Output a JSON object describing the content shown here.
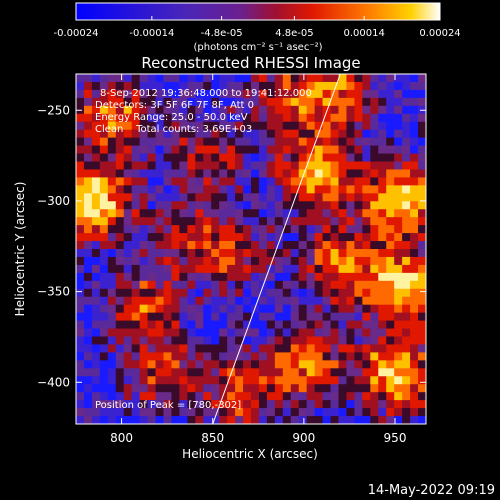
{
  "chart_data": {
    "type": "heatmap",
    "title": "Reconstructed RHESSI Image",
    "xlabel": "Heliocentric X (arcsec)",
    "ylabel": "Heliocentric Y (arcsec)",
    "xlim": [
      775,
      967
    ],
    "ylim": [
      -423,
      -230
    ],
    "x_ticks": [
      "800",
      "850",
      "900",
      "950"
    ],
    "x_tick_values": [
      800,
      850,
      900,
      950
    ],
    "y_ticks": [
      "-250",
      "-300",
      "-350",
      "-400"
    ],
    "y_tick_values": [
      -250,
      -300,
      -350,
      -400
    ],
    "colorbar": {
      "ticks": [
        "-0.00024",
        "-0.00014",
        "-4.8e-05",
        "4.8e-05",
        "0.00014",
        "0.00024"
      ],
      "tick_values": [
        -0.00024,
        -0.00014,
        -4.8e-05,
        4.8e-05,
        0.00014,
        0.00024
      ],
      "range": [
        -0.00024,
        0.00024
      ],
      "units": "(photons cm⁻² s⁻¹ asec⁻²)",
      "colors": [
        "#0000ff",
        "#3a1fc8",
        "#5a2aa0",
        "#7a1a70",
        "#b01018",
        "#e02000",
        "#ff7a00",
        "#ffd000",
        "#ffffff"
      ]
    },
    "annotations": {
      "time": "8-Sep-2012 19:36:48.000 to 19:41:12.000",
      "detectors": "Detectors: 3F 5F 6F 7F 8F, Att 0",
      "energy": "Energy Range: 25.0 - 50.0 keV",
      "clean": "Clean    Total counts: 3.69E+03",
      "peak": "Position of Peak = [780,-302]"
    },
    "limb_line": {
      "x": [
        850,
        920
      ],
      "y": [
        -423,
        -230
      ]
    },
    "hot_regions": [
      {
        "x": 785,
        "y": -300,
        "level": 1.0
      },
      {
        "x": 795,
        "y": -255,
        "level": 0.7
      },
      {
        "x": 812,
        "y": -358,
        "level": 0.55
      },
      {
        "x": 848,
        "y": -275,
        "level": 0.5
      },
      {
        "x": 908,
        "y": -285,
        "level": 0.85
      },
      {
        "x": 920,
        "y": -335,
        "level": 0.7
      },
      {
        "x": 952,
        "y": -300,
        "level": 0.95
      },
      {
        "x": 955,
        "y": -348,
        "level": 0.95
      },
      {
        "x": 950,
        "y": -395,
        "level": 0.9
      },
      {
        "x": 902,
        "y": -390,
        "level": 0.65
      },
      {
        "x": 865,
        "y": -405,
        "level": 0.6
      },
      {
        "x": 822,
        "y": -395,
        "level": 0.5
      },
      {
        "x": 860,
        "y": -330,
        "level": 0.45
      },
      {
        "x": 835,
        "y": -320,
        "level": 0.4
      },
      {
        "x": 890,
        "y": -245,
        "level": 0.55
      },
      {
        "x": 920,
        "y": -240,
        "level": 0.6
      }
    ]
  },
  "footer": {
    "timestamp": "14-May-2022 09:19"
  }
}
